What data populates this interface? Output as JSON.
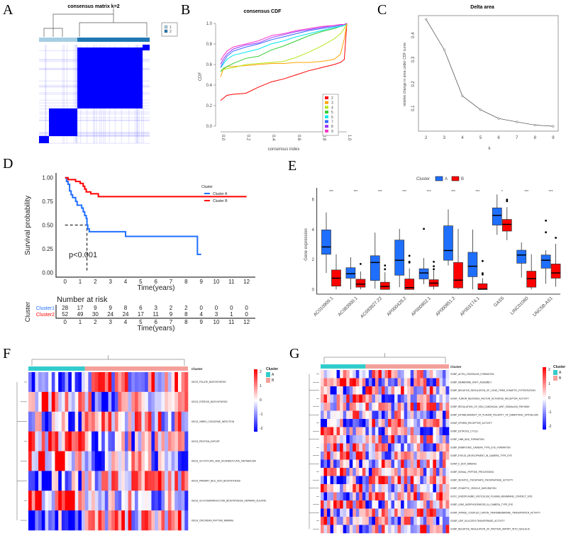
{
  "panels": {
    "A": "A",
    "B": "B",
    "C": "C",
    "D": "D",
    "E": "E",
    "F": "F",
    "G": "G"
  },
  "chart_data": [
    {
      "panel": "A",
      "type": "heatmap",
      "title": "consensus matrix k=2",
      "legend": [
        "1",
        "2"
      ],
      "colors": {
        "1": "#a6cee3",
        "2": "#1f78b4",
        "matrix": "#0000ff"
      }
    },
    {
      "panel": "B",
      "type": "line",
      "title": "consensus CDF",
      "xlabel": "consensus index",
      "ylabel": "CDF",
      "xlim": [
        0,
        1
      ],
      "ylim": [
        0,
        1
      ],
      "xticks": [
        "0.0",
        "0.2",
        "0.4",
        "0.6",
        "0.8",
        "1.0"
      ],
      "yticks": [
        "0.0",
        "0.2",
        "0.4",
        "0.6",
        "0.8",
        "1.0"
      ],
      "legend_position": "bottom-right",
      "x": [
        0,
        0.02,
        0.05,
        0.1,
        0.2,
        0.3,
        0.4,
        0.5,
        0.6,
        0.7,
        0.8,
        0.9,
        0.95,
        0.98,
        1
      ],
      "series": [
        {
          "name": "2",
          "color": "#ff0000",
          "values": [
            0.25,
            0.27,
            0.3,
            0.31,
            0.32,
            0.38,
            0.43,
            0.46,
            0.5,
            0.54,
            0.57,
            0.6,
            0.62,
            0.65,
            1
          ]
        },
        {
          "name": "3",
          "color": "#ffa500",
          "values": [
            0.48,
            0.55,
            0.58,
            0.58,
            0.59,
            0.6,
            0.61,
            0.61,
            0.62,
            0.62,
            0.63,
            0.65,
            0.7,
            0.85,
            1
          ]
        },
        {
          "name": "4",
          "color": "#b5e61d",
          "values": [
            0.53,
            0.55,
            0.56,
            0.57,
            0.6,
            0.61,
            0.62,
            0.63,
            0.67,
            0.72,
            0.78,
            0.85,
            0.9,
            0.95,
            1
          ]
        },
        {
          "name": "5",
          "color": "#33cc33",
          "values": [
            0.53,
            0.56,
            0.58,
            0.61,
            0.66,
            0.68,
            0.74,
            0.78,
            0.83,
            0.88,
            0.92,
            0.95,
            0.97,
            0.98,
            1
          ]
        },
        {
          "name": "6",
          "color": "#00e5ee",
          "values": [
            0.57,
            0.6,
            0.65,
            0.69,
            0.72,
            0.75,
            0.8,
            0.83,
            0.87,
            0.9,
            0.93,
            0.96,
            0.97,
            0.98,
            1
          ]
        },
        {
          "name": "7",
          "color": "#3366ff",
          "values": [
            0.57,
            0.62,
            0.68,
            0.73,
            0.77,
            0.8,
            0.84,
            0.87,
            0.9,
            0.93,
            0.95,
            0.97,
            0.98,
            0.99,
            1
          ]
        },
        {
          "name": "8",
          "color": "#9933ff",
          "values": [
            0.6,
            0.65,
            0.7,
            0.75,
            0.79,
            0.81,
            0.86,
            0.89,
            0.92,
            0.94,
            0.96,
            0.98,
            0.99,
            0.99,
            1
          ]
        },
        {
          "name": "9",
          "color": "#ff33cc",
          "values": [
            0.64,
            0.68,
            0.73,
            0.77,
            0.8,
            0.83,
            0.88,
            0.9,
            0.93,
            0.95,
            0.97,
            0.98,
            0.99,
            0.99,
            1
          ]
        }
      ]
    },
    {
      "panel": "C",
      "type": "line",
      "title": "Delta area",
      "xlabel": "k",
      "ylabel": "relative change in area under CDF curve",
      "x": [
        2,
        3,
        4,
        5,
        6,
        7,
        8,
        9
      ],
      "values": [
        0.46,
        0.335,
        0.145,
        0.088,
        0.052,
        0.038,
        0.025,
        0.02
      ],
      "yticks": [
        "0.1",
        "0.2",
        "0.3",
        "0.4"
      ]
    },
    {
      "panel": "D",
      "type": "line",
      "subtype": "kaplan-meier",
      "xlabel": "Time(years)",
      "ylabel": "Survival probability",
      "xlim": [
        0,
        12
      ],
      "ylim": [
        0,
        1
      ],
      "xticks": [
        "0",
        "1",
        "2",
        "3",
        "4",
        "5",
        "6",
        "7",
        "8",
        "9",
        "10",
        "11",
        "12"
      ],
      "yticks": [
        "0.00",
        "0.25",
        "0.50",
        "0.75",
        "1.00"
      ],
      "legend_title": "Cluster",
      "pvalue": "p<0.001",
      "median_survival_A": 1.45,
      "series": [
        {
          "name": "Cluster A",
          "color": "#1f6fff",
          "steps": [
            [
              0,
              1
            ],
            [
              0.1,
              0.96
            ],
            [
              0.2,
              0.93
            ],
            [
              0.3,
              0.86
            ],
            [
              0.4,
              0.82
            ],
            [
              0.5,
              0.79
            ],
            [
              0.7,
              0.75
            ],
            [
              0.8,
              0.71
            ],
            [
              1.1,
              0.68
            ],
            [
              1.2,
              0.64
            ],
            [
              1.3,
              0.6
            ],
            [
              1.4,
              0.57
            ],
            [
              1.45,
              0.5
            ],
            [
              1.5,
              0.46
            ],
            [
              1.6,
              0.43
            ],
            [
              4,
              0.38
            ],
            [
              8.75,
              0.19
            ],
            [
              9,
              0.19
            ]
          ]
        },
        {
          "name": "Cluster B",
          "color": "#ff0000",
          "steps": [
            [
              0,
              1
            ],
            [
              0.2,
              0.98
            ],
            [
              0.7,
              0.96
            ],
            [
              1,
              0.94
            ],
            [
              1.2,
              0.91
            ],
            [
              1.3,
              0.88
            ],
            [
              1.4,
              0.85
            ],
            [
              1.7,
              0.83
            ],
            [
              2.2,
              0.8
            ],
            [
              12,
              0.8
            ]
          ]
        }
      ],
      "risk_table": {
        "title": "Number at risk",
        "ylabel": "Cluster",
        "xlabel": "Time(years)",
        "rows": [
          {
            "name": "Cluster1",
            "color": "#1f6fff",
            "values": [
              "28",
              "17",
              "9",
              "9",
              "8",
              "6",
              "3",
              "2",
              "2",
              "0",
              "0",
              "0",
              "0"
            ]
          },
          {
            "name": "Cluster2",
            "color": "#ff0000",
            "values": [
              "52",
              "49",
              "30",
              "24",
              "24",
              "17",
              "11",
              "9",
              "8",
              "4",
              "3",
              "1",
              "0"
            ]
          }
        ]
      }
    },
    {
      "panel": "E",
      "type": "box",
      "ylabel": "Gene expression",
      "legend_title": "Cluster",
      "legend": [
        "A",
        "B"
      ],
      "colors": {
        "A": "#1f6fff",
        "B": "#ff0000"
      },
      "yticks": [
        "0",
        "2",
        "4",
        "6"
      ],
      "ylim": [
        -0.2,
        6.6
      ],
      "categories": [
        "AC010909.1",
        "AC083900.1",
        "AC093827.22",
        "AP000428.2",
        "AP000802.1",
        "AP000851.2",
        "AP003174.1",
        "GAS5",
        "LINC01060",
        "UNC5B-AS1"
      ],
      "significance": [
        "***",
        "***",
        "***",
        "***",
        "***",
        "***",
        "***",
        "*",
        "***",
        "***"
      ],
      "A": [
        [
          1.1,
          2.35,
          2.84,
          3.98,
          5.15,
          []
        ],
        [
          0,
          0.75,
          1.05,
          1.45,
          2.15,
          []
        ],
        [
          0.05,
          0.6,
          1.8,
          2.25,
          3.8,
          []
        ],
        [
          0.15,
          0.95,
          1.95,
          3.3,
          4.05,
          []
        ],
        [
          0.35,
          0.7,
          1.1,
          1.38,
          2.1,
          [
            4.05
          ]
        ],
        [
          1.6,
          1.95,
          2.6,
          4.25,
          5.35,
          []
        ],
        [
          0,
          0.85,
          1.55,
          2.48,
          4.0,
          []
        ],
        [
          3.65,
          4.3,
          4.95,
          5.45,
          6.35,
          []
        ],
        [
          0.8,
          1.75,
          2.3,
          2.62,
          3.15,
          []
        ],
        [
          0.38,
          1.42,
          1.95,
          2.3,
          2.62,
          [
            3.82,
            4.6
          ]
        ]
      ],
      "B": [
        [
          0,
          0.22,
          0.75,
          1.3,
          2.35,
          []
        ],
        [
          0,
          0.15,
          0.35,
          0.68,
          1.2,
          [
            1.7
          ]
        ],
        [
          0,
          0,
          0.2,
          0.48,
          1.15,
          [
            1.35,
            1.6
          ]
        ],
        [
          0,
          0,
          0.12,
          0.7,
          1.4,
          [
            1.8,
            1.85,
            2.25
          ]
        ],
        [
          0,
          0.2,
          0.42,
          0.65,
          1.25,
          [
            1.35,
            1.55,
            1.85
          ]
        ],
        [
          0,
          0.1,
          0.62,
          1.8,
          4.05,
          []
        ],
        [
          0,
          0,
          0.02,
          0.38,
          0.75,
          [
            1.0,
            1.08,
            1.9
          ]
        ],
        [
          3.3,
          3.9,
          4.35,
          4.68,
          5.5,
          [
            5.9,
            6.0
          ]
        ],
        [
          0,
          0.15,
          0.72,
          1.22,
          2.35,
          []
        ],
        [
          0.18,
          0.75,
          1.1,
          1.7,
          3.05,
          [
            3.45
          ]
        ]
      ]
    },
    {
      "panel": "F",
      "type": "heatmap",
      "annotation_title": "Cluster",
      "legend": [
        "A",
        "B"
      ],
      "colors": {
        "A": "#33cccc",
        "B": "#f4a09a",
        "high": "#ff0000",
        "low": "#0000ff"
      },
      "scale_ticks": [
        "2",
        "1",
        "0",
        "-1",
        "-2"
      ],
      "rows": [
        "KEGG_FOLATE_BIOSYNTHESIS",
        "KEGG_STEROID_BIOSYNTHESIS",
        "KEGG_VIBRIO_CHOLERAE_INFECTION",
        "KEGG_PROTEIN_EXPORT",
        "KEGG_GLYOXYLATE_AND_DICARBOXYLATE_METABOLISM",
        "KEGG_PRIMARY_BILE_ACID_BIOSYNTHESIS",
        "KEGG_GLYCOSAMINOGLYCAN_BIOSYNTHESIS_HEPARAN_SULFATE",
        "KEGG_CIRCADIAN_RHYTHM_MAMMAL"
      ]
    },
    {
      "panel": "G",
      "type": "heatmap",
      "annotation_title": "Cluster",
      "legend": [
        "A",
        "B"
      ],
      "colors": {
        "A": "#33cccc",
        "B": "#f4a09a",
        "high": "#ff0000",
        "low": "#0000ff"
      },
      "scale_ticks": [
        "2",
        "1",
        "0",
        "-1",
        "-2"
      ],
      "rows": [
        "GOBP_ACTIN_CROSSLINK_FORMATION",
        "GOBP_MEMBRANE_RAFT_ASSEMBLY",
        "GOBP_NEGATIVE_REGULATION_OF_LONG_TERM_SYNAPTIC_POTENTIATION",
        "GOMF_TUMOR_NECROSIS_FACTOR_ACTIVATED_RECEPTOR_ACTIVITY",
        "GOBP_REGULATION_OF_NON_CANONICAL_WNT_SIGNALING_PATHWAY",
        "GOBP_ESTABLISHMENT_OF_PLANAR_POLARITY_OF_EMBRYONIC_EPITHELIUM",
        "GOMF_EPHRIN_RECEPTOR_ACTIVITY",
        "GOBP_ESTROUS_CYCLE",
        "GOBP_LIMB_BUD_FORMATION",
        "GOBP_EMBRYONIC_CAMERA_TYPE_EYE_FORMATION",
        "GOBP_EYELID_DEVELOPMENT_IN_CAMERA_TYPE_EYE",
        "GOMF_E_BOX_BINDING",
        "GOBP_SIGNAL_PEPTIDE_PROCESSING",
        "GOBP_INOSITOL_PHOSPHATE_PHOSPHATASE_ACTIVITY",
        "GOBP_SYNAPTIC_VESICLE_MATURATION",
        "GOCC_ENDOPLASMIC_RETICULUM_PLASMA_MEMBRANE_CONTACT_SITE",
        "GOBP_LENS_MORPHOGENESIS_IN_CAMERA_TYPE_EYE",
        "GOMF_ATPASE_COUPLED_CATION_TRANSMEMBRANE_TRANSPORTER_ACTIVITY",
        "GOMF_UDP_GLUCOSYLTRANSFERASE_ACTIVITY",
        "GOBP_NEGATIVE_REGULATION_OF_PROTEIN_IMPORT_INTO_NUCLEUS"
      ]
    }
  ]
}
